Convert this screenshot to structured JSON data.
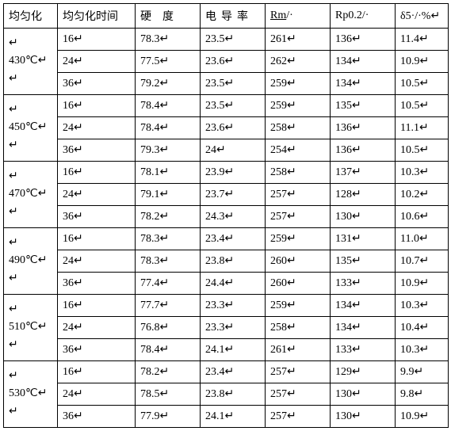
{
  "headers": {
    "c0": "均匀化",
    "c1": "均匀化时间",
    "c2_a": "硬",
    "c2_b": "度",
    "c3_a": "电",
    "c3_b": "导",
    "c3_c": "率",
    "c4": "Rm",
    "c4_suffix": "/·",
    "c5": "Rp0.2/·",
    "c6": "δ5·/·%"
  },
  "groups": [
    {
      "temp": "430℃",
      "rows": [
        {
          "t": "16",
          "h": "78.3",
          "e": "23.5",
          "rm": "261",
          "rp": "136",
          "d": "11.4"
        },
        {
          "t": "24",
          "h": "77.5",
          "e": "23.6",
          "rm": "262",
          "rp": "134",
          "d": "10.9"
        },
        {
          "t": "36",
          "h": "79.2",
          "e": "23.5",
          "rm": "259",
          "rp": "134",
          "d": "10.5"
        }
      ]
    },
    {
      "temp": "450℃",
      "rows": [
        {
          "t": "16",
          "h": "78.4",
          "e": "23.5",
          "rm": "259",
          "rp": "135",
          "d": "10.5"
        },
        {
          "t": "24",
          "h": "78.4",
          "e": "23.6",
          "rm": "258",
          "rp": "136",
          "d": "11.1"
        },
        {
          "t": "36",
          "h": "79.3",
          "e": "24",
          "rm": "254",
          "rp": "136",
          "d": "10.5"
        }
      ]
    },
    {
      "temp": "470℃",
      "rows": [
        {
          "t": "16",
          "h": "78.1",
          "e": "23.9",
          "rm": "258",
          "rp": "137",
          "d": "10.3"
        },
        {
          "t": "24",
          "h": "79.1",
          "e": "23.7",
          "rm": "257",
          "rp": "128",
          "d": "10.2"
        },
        {
          "t": "36",
          "h": "78.2",
          "e": "24.3",
          "rm": "257",
          "rp": "130",
          "d": "10.6"
        }
      ]
    },
    {
      "temp": "490℃",
      "rows": [
        {
          "t": "16",
          "h": "78.3",
          "e": "23.4",
          "rm": "259",
          "rp": "131",
          "d": "11.0"
        },
        {
          "t": "24",
          "h": "78.3",
          "e": "23.8",
          "rm": "260",
          "rp": "135",
          "d": "10.7"
        },
        {
          "t": "36",
          "h": "77.4",
          "e": "24.4",
          "rm": "260",
          "rp": "133",
          "d": "10.9"
        }
      ]
    },
    {
      "temp": "510℃",
      "rows": [
        {
          "t": "16",
          "h": "77.7",
          "e": "23.3",
          "rm": "259",
          "rp": "134",
          "d": "10.3"
        },
        {
          "t": "24",
          "h": "76.8",
          "e": "23.3",
          "rm": "258",
          "rp": "134",
          "d": "10.4"
        },
        {
          "t": "36",
          "h": "78.4",
          "e": "24.1",
          "rm": "261",
          "rp": "133",
          "d": "10.3"
        }
      ]
    },
    {
      "temp": "530℃",
      "rows": [
        {
          "t": "16",
          "h": "78.2",
          "e": "23.4",
          "rm": "257",
          "rp": "129",
          "d": "9.9"
        },
        {
          "t": "24",
          "h": "78.5",
          "e": "23.8",
          "rm": "257",
          "rp": "130",
          "d": "9.8"
        },
        {
          "t": "36",
          "h": "77.9",
          "e": "24.1",
          "rm": "257",
          "rp": "130",
          "d": "10.9"
        }
      ]
    }
  ],
  "mark": "↵",
  "style": {
    "font_size": 14,
    "border_color": "#000000",
    "background": "#ffffff",
    "text_color": "#000000"
  }
}
